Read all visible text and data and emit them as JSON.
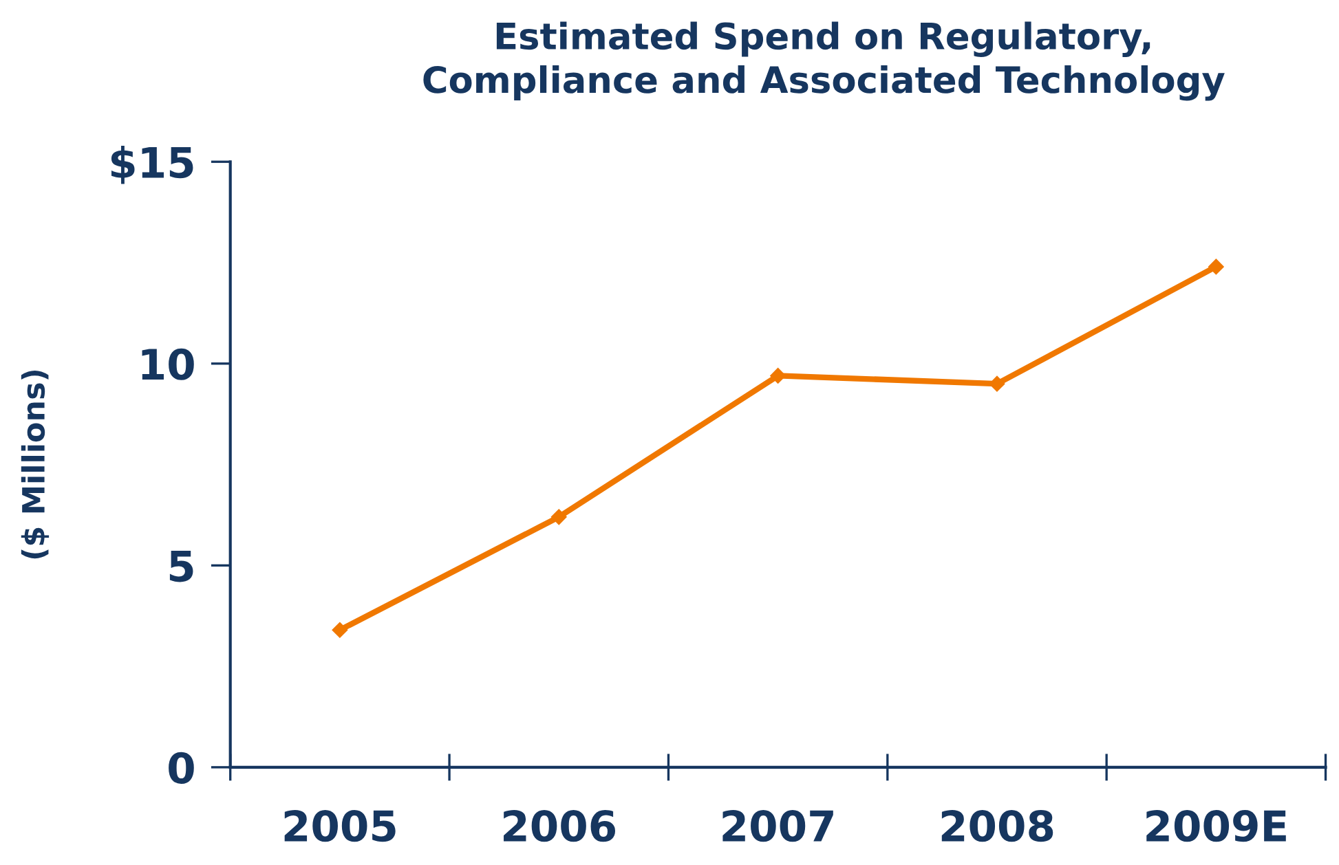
{
  "chart_data": {
    "type": "line",
    "title": "Estimated Spend on Regulatory,\nCompliance and Associated Technology",
    "ylabel": "($ Millions)",
    "categories": [
      "2005",
      "2006",
      "2007",
      "2008",
      "2009E"
    ],
    "series": [
      {
        "color": "#f07800",
        "values": [
          3.4,
          6.2,
          9.7,
          9.5,
          12.4
        ]
      }
    ],
    "ylim": [
      0,
      15
    ],
    "yticks": [
      0,
      5,
      10,
      {
        "value": 15,
        "label": "$15"
      }
    ],
    "marker": "diamond",
    "line_style": "solid",
    "grid": false,
    "legend": false
  }
}
